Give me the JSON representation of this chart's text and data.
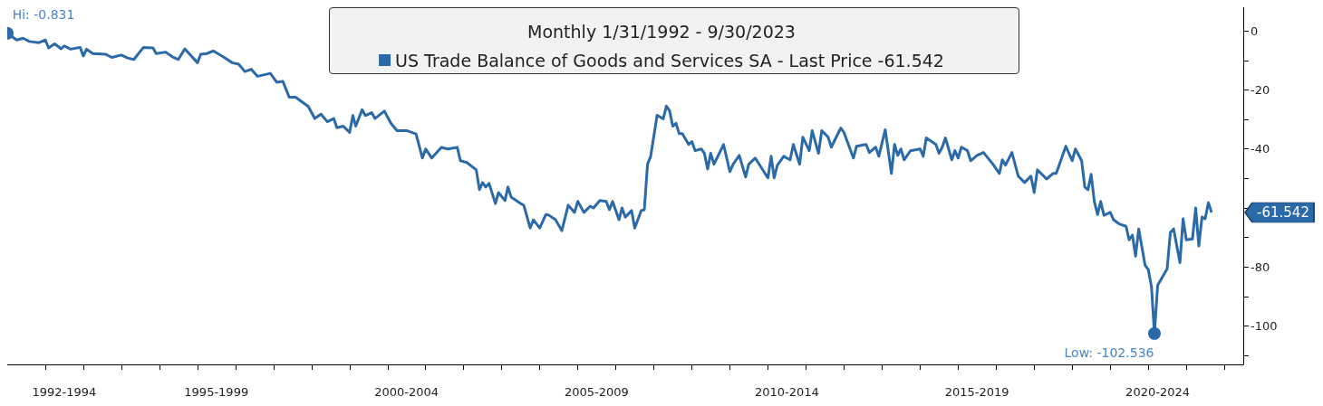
{
  "chart_data": {
    "type": "line",
    "title": "Monthly 1/31/1992 - 9/30/2023",
    "legend": "top",
    "x": [
      "1992-01",
      "1992-04",
      "1992-06",
      "1992-08",
      "1992-11",
      "1993-01",
      "1993-02",
      "1993-04",
      "1993-06",
      "1993-07",
      "1993-09",
      "1993-12",
      "1994-01",
      "1994-02",
      "1994-04",
      "1994-08",
      "1994-10",
      "1995-01",
      "1995-03",
      "1995-05",
      "1995-08",
      "1995-11",
      "1995-12",
      "1996-03",
      "1996-05",
      "1996-07",
      "1996-09",
      "1997-01",
      "1997-02",
      "1997-04",
      "1997-06",
      "1997-09",
      "1997-12",
      "1998-02",
      "1998-04",
      "1998-06",
      "1998-08",
      "1998-12",
      "1999-02",
      "1999-04",
      "1999-06",
      "1999-08",
      "1999-12",
      "2000-02",
      "2000-04",
      "2000-06",
      "2000-08",
      "2000-09",
      "2000-11",
      "2001-01",
      "2001-02",
      "2001-03",
      "2001-05",
      "2001-06",
      "2001-08",
      "2001-09",
      "2001-12",
      "2002-02",
      "2002-04",
      "2002-07",
      "2002-10",
      "2002-12",
      "2003-01",
      "2003-03",
      "2003-06",
      "2003-08",
      "2003-11",
      "2003-12",
      "2004-02",
      "2004-05",
      "2004-06",
      "2004-07",
      "2004-08",
      "2004-09",
      "2004-11",
      "2004-12",
      "2005-02",
      "2005-03",
      "2005-04",
      "2005-07",
      "2005-08",
      "2005-10",
      "2005-11",
      "2006-01",
      "2006-03",
      "2006-04",
      "2006-06",
      "2006-08",
      "2006-10",
      "2006-12",
      "2007-01",
      "2007-03",
      "2007-05",
      "2007-06",
      "2007-08",
      "2007-10",
      "2007-11",
      "2007-12",
      "2008-02",
      "2008-03",
      "2008-04",
      "2008-06",
      "2008-07",
      "2008-09",
      "2008-10",
      "2008-11",
      "2008-12",
      "2009-02",
      "2009-04",
      "2009-05",
      "2009-06",
      "2009-07",
      "2009-08",
      "2009-09",
      "2009-10",
      "2009-12",
      "2010-01",
      "2010-02",
      "2010-04",
      "2010-05",
      "2010-06",
      "2010-07",
      "2010-08",
      "2010-11",
      "2011-01",
      "2011-02",
      "2011-04",
      "2011-06",
      "2011-07",
      "2011-09",
      "2012-01",
      "2012-02",
      "2012-03",
      "2012-04",
      "2012-06",
      "2012-08",
      "2012-09",
      "2012-11",
      "2012-12",
      "2013-02",
      "2013-03",
      "2013-05",
      "2013-06",
      "2013-08",
      "2013-09",
      "2013-12",
      "2014-01",
      "2014-04",
      "2014-05",
      "2014-08",
      "2014-09",
      "2014-11",
      "2014-12",
      "2015-02",
      "2015-04",
      "2015-05",
      "2015-06",
      "2015-07",
      "2015-08",
      "2015-10",
      "2016-01",
      "2016-02",
      "2016-03",
      "2016-06",
      "2016-07",
      "2016-08",
      "2016-09",
      "2016-11",
      "2016-12",
      "2017-01",
      "2017-02",
      "2017-04",
      "2017-05",
      "2017-06",
      "2017-07",
      "2017-09",
      "2017-10",
      "2017-12",
      "2018-02",
      "2018-03",
      "2018-04",
      "2018-06",
      "2018-08",
      "2018-10",
      "2018-12",
      "2019-01",
      "2019-02",
      "2019-05",
      "2019-07",
      "2019-08",
      "2019-11",
      "2020-01",
      "2020-02",
      "2020-04",
      "2020-05",
      "2020-06",
      "2020-07",
      "2020-08",
      "2020-09",
      "2020-10",
      "2020-11",
      "2021-01",
      "2021-02",
      "2021-04",
      "2021-06",
      "2021-07",
      "2021-08",
      "2021-09",
      "2021-10",
      "2021-12",
      "2022-01",
      "2022-02",
      "2022-03",
      "2022-04",
      "2022-07",
      "2022-08",
      "2022-09",
      "2022-11",
      "2022-12",
      "2023-01",
      "2023-03",
      "2023-04",
      "2023-05",
      "2023-06",
      "2023-07",
      "2023-08",
      "2023-09"
    ],
    "series": [
      {
        "name": "US Trade Balance of Goods and Services SA - Last Price -61.542",
        "color": "#2b6aa8",
        "values": [
          -0.831,
          -3.1,
          -2.5,
          -3.6,
          -4.0,
          -3.1,
          -5.8,
          -4.4,
          -6.1,
          -5.1,
          -6.2,
          -5.6,
          -8.5,
          -6.2,
          -7.7,
          -7.9,
          -9.0,
          -8.2,
          -9.2,
          -9.7,
          -5.6,
          -5.8,
          -7.7,
          -7.2,
          -8.7,
          -9.7,
          -6.1,
          -10.8,
          -7.9,
          -7.7,
          -6.8,
          -8.7,
          -10.8,
          -11.3,
          -13.8,
          -13.0,
          -15.4,
          -14.4,
          -17.4,
          -17.1,
          -22.5,
          -22.5,
          -25.6,
          -29.7,
          -28.2,
          -30.8,
          -29.7,
          -32.8,
          -32.3,
          -34.4,
          -28.7,
          -32.3,
          -26.7,
          -28.7,
          -27.7,
          -29.7,
          -27.2,
          -31.3,
          -33.8,
          -33.8,
          -34.9,
          -43.1,
          -40.0,
          -43.1,
          -39.5,
          -40.0,
          -39.5,
          -44.0,
          -44.6,
          -47.1,
          -53.8,
          -51.4,
          -52.9,
          -51.7,
          -58.5,
          -54.8,
          -57.5,
          -52.9,
          -56.3,
          -58.5,
          -59.1,
          -66.8,
          -64.0,
          -66.8,
          -62.2,
          -62.5,
          -64.0,
          -67.7,
          -59.1,
          -61.5,
          -57.8,
          -61.5,
          -59.4,
          -60.0,
          -57.5,
          -57.8,
          -60.6,
          -57.8,
          -64.0,
          -60.0,
          -63.1,
          -60.9,
          -66.8,
          -60.9,
          -60.6,
          -45.2,
          -42.5,
          -28.6,
          -29.8,
          -25.5,
          -27.1,
          -32.3,
          -31.3,
          -34.8,
          -34.8,
          -38.5,
          -37.5,
          -40.6,
          -40.0,
          -41.5,
          -46.8,
          -41.5,
          -45.2,
          -38.5,
          -47.7,
          -45.2,
          -42.2,
          -49.5,
          -45.2,
          -43.1,
          -49.8,
          -42.5,
          -49.8,
          -45.5,
          -42.5,
          -43.7,
          -38.5,
          -45.2,
          -36.0,
          -40.6,
          -33.8,
          -41.5,
          -33.8,
          -36.0,
          -39.4,
          -32.9,
          -34.5,
          -43.1,
          -39.1,
          -38.5,
          -41.2,
          -39.4,
          -42.5,
          -33.5,
          -48.3,
          -38.5,
          -42.2,
          -40.0,
          -43.7,
          -40.6,
          -40.0,
          -42.5,
          -36.3,
          -38.5,
          -41.5,
          -39.4,
          -36.3,
          -43.7,
          -40.6,
          -43.1,
          -39.4,
          -40.6,
          -44.0,
          -43.1,
          -42.2,
          -41.2,
          -42.5,
          -45.2,
          -48.3,
          -43.7,
          -45.5,
          -41.2,
          -49.2,
          -51.4,
          -49.2,
          -54.8,
          -47.1,
          -50.2,
          -48.3,
          -48.3,
          -39.1,
          -44.0,
          -40.0,
          -44.0,
          -52.9,
          -53.8,
          -48.6,
          -57.8,
          -62.2,
          -57.8,
          -62.5,
          -61.5,
          -64.0,
          -65.5,
          -66.2,
          -70.8,
          -69.2,
          -76.3,
          -67.1,
          -79.4,
          -80.9,
          -86.8,
          -102.536,
          -86.2,
          -80.6,
          -68.3,
          -67.1,
          -78.5,
          -63.7,
          -70.8,
          -70.5,
          -60.0,
          -72.9,
          -63.1,
          -63.7,
          -58.2,
          -61.542
        ]
      }
    ],
    "xlim": [
      "1992-01",
      "2024-07"
    ],
    "xticks": [
      {
        "value": "1993-07",
        "label": "1992-1994"
      },
      {
        "value": "1997-07",
        "label": "1995-1999"
      },
      {
        "value": "2002-07",
        "label": "2000-2004"
      },
      {
        "value": "2007-07",
        "label": "2005-2009"
      },
      {
        "value": "2012-07",
        "label": "2010-2014"
      },
      {
        "value": "2017-07",
        "label": "2015-2019"
      },
      {
        "value": "2022-04",
        "label": "2020-2024"
      },
      {
        "value": "1993-01",
        "label": null
      },
      {
        "value": "1994-01",
        "label": null
      },
      {
        "value": "1995-01",
        "label": null
      },
      {
        "value": "1996-01",
        "label": null
      },
      {
        "value": "1997-01",
        "label": null
      },
      {
        "value": "1998-01",
        "label": null
      },
      {
        "value": "1999-01",
        "label": null
      },
      {
        "value": "2000-01",
        "label": null
      },
      {
        "value": "2001-01",
        "label": null
      },
      {
        "value": "2002-01",
        "label": null
      },
      {
        "value": "2003-01",
        "label": null
      },
      {
        "value": "2004-01",
        "label": null
      },
      {
        "value": "2005-01",
        "label": null
      },
      {
        "value": "2006-01",
        "label": null
      },
      {
        "value": "2007-01",
        "label": null
      },
      {
        "value": "2008-01",
        "label": null
      },
      {
        "value": "2009-01",
        "label": null
      },
      {
        "value": "2010-01",
        "label": null
      },
      {
        "value": "2011-01",
        "label": null
      },
      {
        "value": "2012-01",
        "label": null
      },
      {
        "value": "2013-01",
        "label": null
      },
      {
        "value": "2014-01",
        "label": null
      },
      {
        "value": "2015-01",
        "label": null
      },
      {
        "value": "2016-01",
        "label": null
      },
      {
        "value": "2017-01",
        "label": null
      },
      {
        "value": "2018-01",
        "label": null
      },
      {
        "value": "2019-01",
        "label": null
      },
      {
        "value": "2020-01",
        "label": null
      },
      {
        "value": "2021-01",
        "label": null
      },
      {
        "value": "2022-01",
        "label": null
      },
      {
        "value": "2023-01",
        "label": null
      },
      {
        "value": "2024-01",
        "label": null
      }
    ],
    "ylim": [
      -113,
      8
    ],
    "yticks": [
      0,
      -20,
      -40,
      {
        "value": -60,
        "label": null
      },
      -80,
      -100,
      {
        "value": -10,
        "label": null
      },
      {
        "value": -30,
        "label": null
      },
      {
        "value": -50,
        "label": null
      },
      {
        "value": -70,
        "label": null
      },
      {
        "value": -90,
        "label": null
      },
      {
        "value": -110,
        "label": null
      }
    ],
    "annotations": [
      {
        "text": "Hi: -0.831",
        "x": "1992-01",
        "y": -0.831
      },
      {
        "text": "Low: -102.536",
        "x": "2022-03",
        "y": -102.536
      },
      "-61.542"
    ]
  }
}
